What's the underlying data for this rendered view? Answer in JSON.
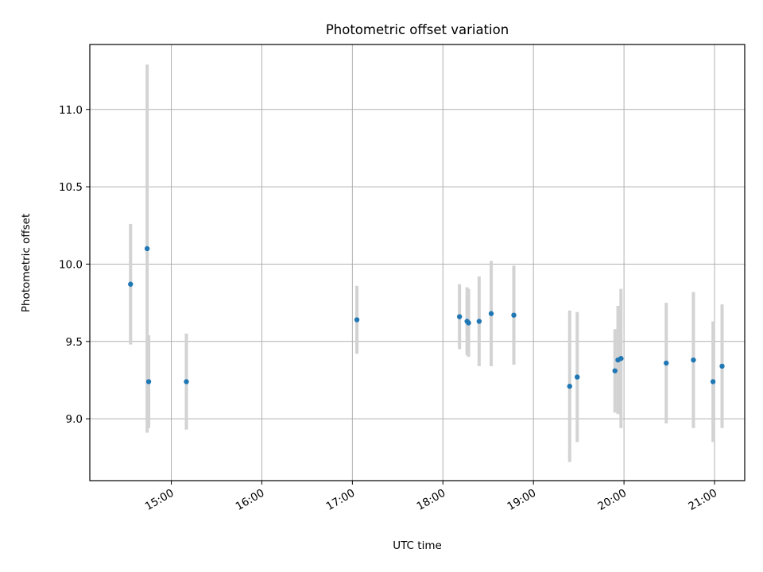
{
  "chart_data": {
    "type": "scatter",
    "title": "Photometric offset variation",
    "xlabel": "UTC time",
    "ylabel": "Photometric offset",
    "x_ticks": [
      "15:00",
      "16:00",
      "17:00",
      "18:00",
      "19:00",
      "20:00",
      "21:00"
    ],
    "y_ticks": [
      "9.0",
      "9.5",
      "10.0",
      "10.5",
      "11.0"
    ],
    "xlim": [
      "14:06",
      "21:20"
    ],
    "ylim": [
      8.6,
      11.42
    ],
    "grid": true,
    "marker_color": "#1f77b4",
    "errorbar_color": "#d3d3d3",
    "points": [
      {
        "x": "14:33",
        "y": 9.87,
        "err": 0.39
      },
      {
        "x": "14:44",
        "y": 10.1,
        "err": 1.19
      },
      {
        "x": "14:45",
        "y": 9.24,
        "err": 0.3
      },
      {
        "x": "15:10",
        "y": 9.24,
        "err": 0.31
      },
      {
        "x": "17:03",
        "y": 9.64,
        "err": 0.22
      },
      {
        "x": "18:11",
        "y": 9.66,
        "err": 0.21
      },
      {
        "x": "18:16",
        "y": 9.63,
        "err": 0.22
      },
      {
        "x": "18:17",
        "y": 9.62,
        "err": 0.22
      },
      {
        "x": "18:24",
        "y": 9.63,
        "err": 0.29
      },
      {
        "x": "18:32",
        "y": 9.68,
        "err": 0.34
      },
      {
        "x": "18:47",
        "y": 9.67,
        "err": 0.32
      },
      {
        "x": "19:24",
        "y": 9.21,
        "err": 0.49
      },
      {
        "x": "19:29",
        "y": 9.27,
        "err": 0.42
      },
      {
        "x": "19:54",
        "y": 9.31,
        "err": 0.27
      },
      {
        "x": "19:56",
        "y": 9.38,
        "err": 0.35
      },
      {
        "x": "19:58",
        "y": 9.39,
        "err": 0.45
      },
      {
        "x": "20:28",
        "y": 9.36,
        "err": 0.39
      },
      {
        "x": "20:46",
        "y": 9.38,
        "err": 0.44
      },
      {
        "x": "20:59",
        "y": 9.24,
        "err": 0.39
      },
      {
        "x": "21:05",
        "y": 9.34,
        "err": 0.4
      }
    ]
  }
}
